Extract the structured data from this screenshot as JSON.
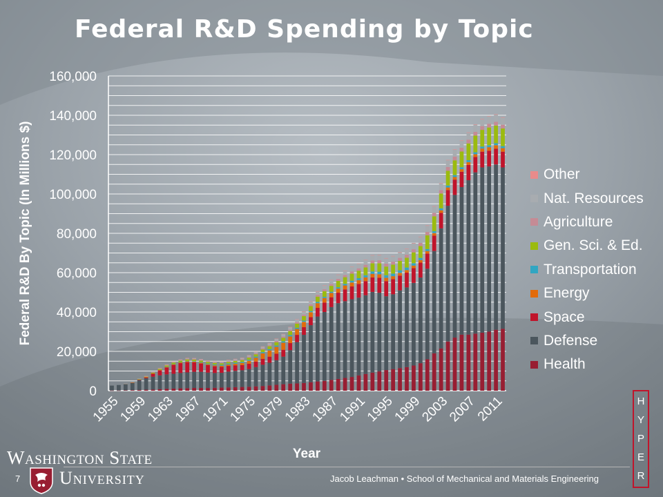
{
  "slide": {
    "title": "Federal R&D Spending by Topic",
    "page_number": "7",
    "footer": "Jacob Leachman • School of Mechanical and Materials Engineering",
    "university_line1": "Washington State",
    "university_line2": "University",
    "hyper_letters": [
      "H",
      "Y",
      "P",
      "E",
      "R"
    ]
  },
  "colors": {
    "accent_red": "#c0142b",
    "crimson": "#981e32"
  },
  "chart_data": {
    "type": "bar",
    "stacked": true,
    "title": "",
    "xlabel": "Year",
    "ylabel": "Federal R&D By Topic (In Millions $)",
    "ylim": [
      0,
      160000
    ],
    "yticks": [
      "0",
      "20,000",
      "40,000",
      "60,000",
      "80,000",
      "100,000",
      "120,000",
      "140,000",
      "160,000"
    ],
    "ytick_values": [
      0,
      20000,
      40000,
      60000,
      80000,
      100000,
      120000,
      140000,
      160000
    ],
    "grid": true,
    "legend_position": "right",
    "x_tick_labels": [
      "1955",
      "1959",
      "1963",
      "1967",
      "1971",
      "1975",
      "1979",
      "1983",
      "1987",
      "1991",
      "1995",
      "1999",
      "2003",
      "2007",
      "2011"
    ],
    "categories": [
      "1955",
      "1956",
      "1957",
      "1958",
      "1959",
      "1960",
      "1961",
      "1962",
      "1963",
      "1964",
      "1965",
      "1966",
      "1967",
      "1968",
      "1969",
      "1970",
      "1971",
      "1972",
      "1973",
      "1974",
      "1975",
      "1976",
      "1977",
      "1978",
      "1979",
      "1980",
      "1981",
      "1982",
      "1983",
      "1984",
      "1985",
      "1986",
      "1987",
      "1988",
      "1989",
      "1990",
      "1991",
      "1992",
      "1993",
      "1994",
      "1995",
      "1996",
      "1997",
      "1998",
      "1999",
      "2000",
      "2001",
      "2002",
      "2003",
      "2004",
      "2005",
      "2006",
      "2007",
      "2008",
      "2009",
      "2010",
      "2011",
      "2012"
    ],
    "series": [
      {
        "name": "Health",
        "color": "#981e32",
        "values": [
          100,
          100,
          200,
          300,
          400,
          500,
          600,
          800,
          1000,
          1100,
          1200,
          1300,
          1400,
          1400,
          1400,
          1500,
          1600,
          1700,
          1800,
          1900,
          2000,
          2200,
          2400,
          2700,
          3000,
          3300,
          3600,
          3700,
          3900,
          4300,
          4700,
          5000,
          5500,
          6000,
          6500,
          7000,
          7800,
          8500,
          9200,
          9800,
          10500,
          11000,
          11500,
          12000,
          12800,
          14000,
          16000,
          19000,
          21500,
          25000,
          27000,
          28500,
          28500,
          29000,
          29500,
          30000,
          31000,
          31500
        ]
      },
      {
        "name": "Defense",
        "color": "#4b565d",
        "values": [
          2500,
          2800,
          3200,
          3700,
          5000,
          5800,
          6500,
          7000,
          7300,
          7500,
          7800,
          8000,
          8200,
          8200,
          7800,
          7500,
          7500,
          8000,
          8300,
          8500,
          9000,
          9800,
          10800,
          11500,
          12500,
          14000,
          17000,
          21000,
          24500,
          29000,
          33000,
          35000,
          37000,
          38500,
          39000,
          39500,
          39500,
          40000,
          41000,
          40000,
          37500,
          38000,
          39500,
          40500,
          42000,
          43500,
          46000,
          52000,
          61000,
          69000,
          72500,
          75000,
          78500,
          82000,
          84000,
          84000,
          84000,
          82000
        ]
      },
      {
        "name": "Space",
        "color": "#c0142b",
        "values": [
          0,
          0,
          0,
          50,
          200,
          500,
          1500,
          2500,
          3500,
          4500,
          5000,
          5200,
          4800,
          4200,
          3800,
          3400,
          3000,
          2900,
          2800,
          2600,
          2700,
          2800,
          3000,
          3100,
          3300,
          3500,
          3600,
          3700,
          3900,
          4100,
          4400,
          4800,
          5000,
          5300,
          6000,
          6500,
          7000,
          7200,
          7400,
          7600,
          7700,
          7700,
          7500,
          7500,
          7500,
          7600,
          7700,
          7800,
          7900,
          8000,
          7800,
          7800,
          7800,
          7800,
          8000,
          8000,
          8000,
          8000
        ]
      },
      {
        "name": "Energy",
        "color": "#e26b0a",
        "values": [
          0,
          0,
          0,
          0,
          0,
          100,
          200,
          300,
          300,
          400,
          400,
          400,
          400,
          400,
          450,
          500,
          600,
          700,
          800,
          1100,
          1500,
          2000,
          2800,
          3200,
          3500,
          3600,
          3400,
          3000,
          2700,
          2500,
          2400,
          2300,
          2200,
          2100,
          2000,
          2000,
          1900,
          1900,
          1800,
          1800,
          1700,
          1500,
          1400,
          1300,
          1300,
          1300,
          1300,
          1300,
          1300,
          1300,
          1300,
          1300,
          1400,
          1400,
          1600,
          1800,
          1800,
          1800
        ]
      },
      {
        "name": "Transportation",
        "color": "#31a6c2",
        "values": [
          0,
          0,
          0,
          0,
          0,
          0,
          0,
          0,
          100,
          100,
          150,
          200,
          250,
          300,
          350,
          400,
          450,
          500,
          500,
          500,
          500,
          500,
          600,
          600,
          650,
          700,
          700,
          600,
          600,
          600,
          600,
          600,
          600,
          700,
          800,
          900,
          1000,
          1100,
          1200,
          1300,
          1300,
          1300,
          1300,
          1300,
          1200,
          1100,
          1000,
          1000,
          1000,
          1000,
          1000,
          1000,
          1000,
          1000,
          1000,
          1000,
          1000,
          1000
        ]
      },
      {
        "name": "Gen. Sci. & Ed.",
        "color": "#9bbb0f",
        "values": [
          0,
          0,
          100,
          200,
          300,
          300,
          400,
          500,
          600,
          700,
          700,
          800,
          800,
          800,
          800,
          800,
          800,
          800,
          900,
          1000,
          1100,
          1200,
          1400,
          1500,
          1700,
          1800,
          2000,
          2100,
          2300,
          2500,
          2700,
          2900,
          3000,
          3200,
          3400,
          3600,
          3800,
          4000,
          4200,
          4300,
          4400,
          4600,
          4800,
          5000,
          5500,
          6000,
          7000,
          7500,
          7500,
          7500,
          7500,
          8000,
          8500,
          8500,
          8500,
          9000,
          9000,
          9000
        ]
      },
      {
        "name": "Agriculture",
        "color": "#c58b95",
        "values": [
          0,
          0,
          50,
          100,
          100,
          100,
          150,
          200,
          200,
          200,
          250,
          300,
          300,
          300,
          300,
          300,
          350,
          400,
          400,
          400,
          450,
          500,
          500,
          550,
          600,
          650,
          700,
          750,
          800,
          850,
          900,
          950,
          1000,
          1050,
          1100,
          1150,
          1200,
          1300,
          1400,
          1500,
          1500,
          1500,
          1500,
          1500,
          1600,
          1600,
          1700,
          1800,
          1800,
          1900,
          1900,
          1900,
          1900,
          1900,
          1900,
          1900,
          1900,
          1900
        ]
      },
      {
        "name": "Nat. Resources",
        "color": "#a8acb0",
        "values": [
          0,
          0,
          50,
          50,
          100,
          100,
          150,
          200,
          250,
          300,
          300,
          350,
          350,
          400,
          400,
          450,
          500,
          550,
          600,
          650,
          700,
          800,
          900,
          1000,
          1100,
          1200,
          1300,
          1400,
          1500,
          1600,
          1700,
          1800,
          1900,
          2000,
          2100,
          2200,
          2300,
          2400,
          2500,
          2600,
          2600,
          2700,
          2800,
          2900,
          3000,
          3000,
          3100,
          3200,
          3300,
          3400,
          3500,
          3500,
          3500,
          3500,
          3500,
          3600,
          3600,
          3600
        ]
      },
      {
        "name": "Other",
        "color": "#e98b8b",
        "values": [
          0,
          0,
          0,
          0,
          0,
          50,
          50,
          50,
          50,
          50,
          100,
          100,
          100,
          100,
          100,
          100,
          100,
          100,
          100,
          100,
          100,
          100,
          100,
          100,
          100,
          100,
          100,
          100,
          100,
          100,
          150,
          150,
          150,
          150,
          150,
          150,
          150,
          150,
          200,
          200,
          200,
          200,
          200,
          200,
          200,
          200,
          200,
          200,
          200,
          200,
          200,
          200,
          200,
          200,
          200,
          200,
          200,
          200
        ]
      }
    ]
  }
}
